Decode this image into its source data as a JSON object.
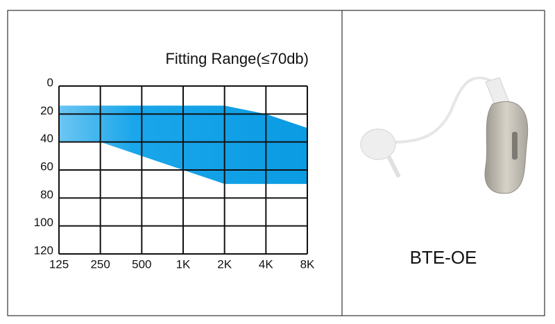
{
  "chart_data": {
    "type": "area_range",
    "title": "Fitting Range(≤70db)",
    "categories": [
      "125",
      "250",
      "500",
      "1K",
      "2K",
      "4K",
      "8K"
    ],
    "series": [
      {
        "color": "#0f9fe6",
        "values": [
          14,
          14,
          14,
          14,
          14,
          20,
          30
        ]
      },
      {
        "color": "#0f9fe6",
        "values": [
          40,
          40,
          50,
          60,
          70,
          70,
          70
        ]
      }
    ],
    "ylim": [
      0,
      120
    ],
    "yticks": [
      0,
      20,
      40,
      60,
      80,
      100,
      120
    ],
    "y_inverted": true,
    "grid": true
  },
  "product": {
    "label": "BTE-OE"
  }
}
